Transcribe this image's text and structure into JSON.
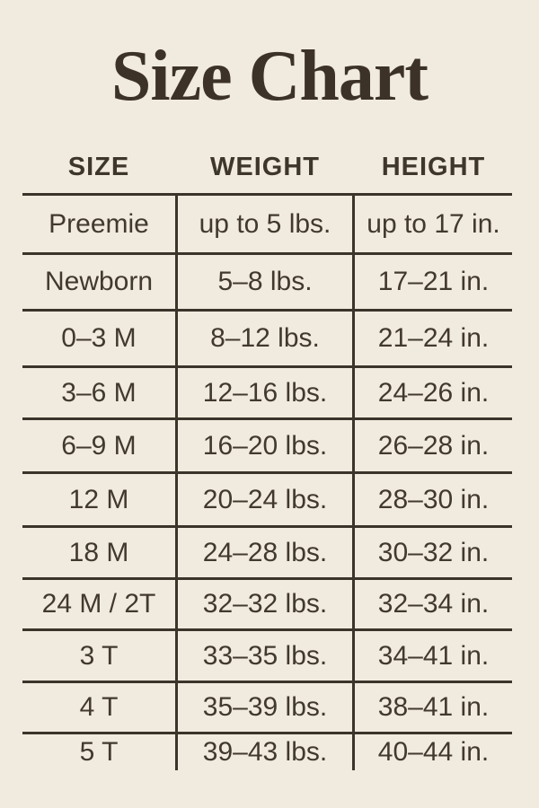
{
  "title": "Size Chart",
  "colors": {
    "background": "#F1EADE",
    "ink": "#42392E",
    "title_ink": "#3C3227",
    "line": "#3A342B"
  },
  "chart_data": {
    "type": "table",
    "title": "Size Chart",
    "columns": [
      "SIZE",
      "WEIGHT",
      "HEIGHT"
    ],
    "rows": [
      {
        "size": "Preemie",
        "weight": "up to 5 lbs.",
        "height": "up to 17 in."
      },
      {
        "size": "Newborn",
        "weight": "5–8 lbs.",
        "height": "17–21 in."
      },
      {
        "size": "0–3 M",
        "weight": "8–12 lbs.",
        "height": "21–24 in."
      },
      {
        "size": "3–6 M",
        "weight": "12–16 lbs.",
        "height": "24–26 in."
      },
      {
        "size": "6–9 M",
        "weight": "16–20 lbs.",
        "height": "26–28 in."
      },
      {
        "size": "12 M",
        "weight": "20–24 lbs.",
        "height": "28–30 in."
      },
      {
        "size": "18 M",
        "weight": "24–28 lbs.",
        "height": "30–32 in."
      },
      {
        "size": "24 M / 2T",
        "weight": "32–32 lbs.",
        "height": "32–34 in."
      },
      {
        "size": "3 T",
        "weight": "33–35 lbs.",
        "height": "34–41 in."
      },
      {
        "size": "4 T",
        "weight": "35–39 lbs.",
        "height": "38–41 in."
      },
      {
        "size": "5 T",
        "weight": "39–43 lbs.",
        "height": "40–44 in."
      }
    ]
  }
}
